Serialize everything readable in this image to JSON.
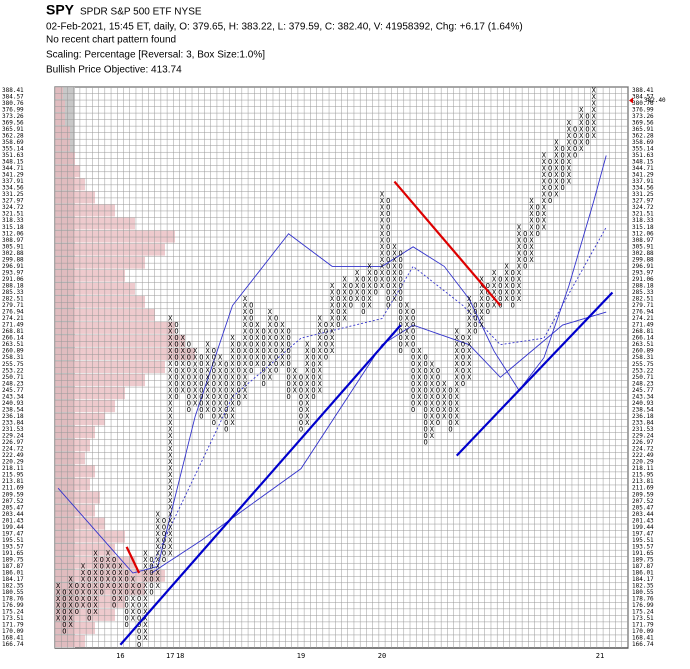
{
  "chart_data": {
    "type": "point-and-figure",
    "symbol": "SPY",
    "name": "SPDR S&P 500 ETF  NYSE",
    "quote": "02-Feb-2021, 15:45 ET, daily, O: 379.65, H: 383.22, L: 379.59, C: 382.40, V: 41958392, Chg: +6.17 (1.64%)",
    "pattern": "No recent chart pattern found",
    "scaling": "Scaling: Percentage [Reversal: 3, Box Size:1.0%]",
    "objective": "Bullish Price Objective: 413.74",
    "log": true,
    "grid": true,
    "xlim": [
      -0.5,
      91.5
    ],
    "ylim": [
      165.91,
      390.35
    ],
    "yticks": [
      388.41,
      384.57,
      380.76,
      376.99,
      373.26,
      369.56,
      365.91,
      362.28,
      358.69,
      355.14,
      351.63,
      348.15,
      344.71,
      341.29,
      337.91,
      334.56,
      331.25,
      327.97,
      324.72,
      321.51,
      318.33,
      315.18,
      312.06,
      308.97,
      305.91,
      302.88,
      299.88,
      296.91,
      293.97,
      291.06,
      288.18,
      285.33,
      282.51,
      279.71,
      276.94,
      274.21,
      271.49,
      268.81,
      266.14,
      263.51,
      260.89,
      258.31,
      255.75,
      253.22,
      250.71,
      248.23,
      245.77,
      243.34,
      240.93,
      238.54,
      236.18,
      233.84,
      231.53,
      229.24,
      226.97,
      224.72,
      222.49,
      220.29,
      218.11,
      215.95,
      213.81,
      211.69,
      209.59,
      207.52,
      205.47,
      203.44,
      201.43,
      199.44,
      197.47,
      195.51,
      193.57,
      191.65,
      189.75,
      187.87,
      186.01,
      184.17,
      182.35,
      180.55,
      178.76,
      176.99,
      175.24,
      173.51,
      171.79,
      170.09,
      168.41,
      166.74
    ],
    "xticks": [
      {
        "value": 10,
        "label": "16"
      },
      {
        "value": 18,
        "label": "17"
      },
      {
        "value": 19.6,
        "label": "18"
      },
      {
        "value": 39,
        "label": "19"
      },
      {
        "value": 52,
        "label": "20"
      },
      {
        "value": 87,
        "label": "21"
      }
    ],
    "last_price": {
      "value": 382.4,
      "label": "382.40"
    },
    "x_color": "#000000",
    "o_color": "#000000",
    "columns": [
      {
        "type": "X",
        "low": 173.51,
        "high": 182.35
      },
      {
        "type": "O",
        "low": 170.09,
        "high": 180.55
      },
      {
        "type": "X",
        "low": 171.79,
        "high": 184.17
      },
      {
        "type": "O",
        "low": 175.24,
        "high": 182.35
      },
      {
        "type": "X",
        "low": 176.99,
        "high": 187.87
      },
      {
        "type": "O",
        "low": 173.51,
        "high": 186.01
      },
      {
        "type": "X",
        "low": 175.24,
        "high": 191.65
      },
      {
        "type": "O",
        "low": 180.55,
        "high": 189.75
      },
      {
        "type": "X",
        "low": 182.35,
        "high": 191.65
      },
      {
        "type": "O",
        "low": 176.99,
        "high": 189.75
      },
      {
        "type": "X",
        "low": 178.76,
        "high": 187.87
      },
      {
        "type": "O",
        "low": 171.79,
        "high": 186.01
      },
      {
        "type": "X",
        "low": 173.51,
        "high": 184.17
      },
      {
        "type": "O",
        "low": 166.74,
        "high": 182.35
      },
      {
        "type": "X",
        "low": 168.41,
        "high": 191.65
      },
      {
        "type": "O",
        "low": 180.55,
        "high": 189.75
      },
      {
        "type": "X",
        "low": 182.35,
        "high": 203.44
      },
      {
        "type": "O",
        "low": 189.75,
        "high": 201.43
      },
      {
        "type": "X",
        "low": 191.65,
        "high": 274.21
      },
      {
        "type": "O",
        "low": 243.34,
        "high": 271.49
      },
      {
        "type": "X",
        "low": 245.77,
        "high": 266.14
      },
      {
        "type": "O",
        "low": 238.54,
        "high": 263.51
      },
      {
        "type": "X",
        "low": 240.93,
        "high": 260.89
      },
      {
        "type": "O",
        "low": 236.18,
        "high": 258.31
      },
      {
        "type": "X",
        "low": 238.54,
        "high": 263.51
      },
      {
        "type": "O",
        "low": 233.84,
        "high": 260.89
      },
      {
        "type": "X",
        "low": 236.18,
        "high": 258.31
      },
      {
        "type": "O",
        "low": 231.53,
        "high": 255.75
      },
      {
        "type": "X",
        "low": 233.84,
        "high": 266.14
      },
      {
        "type": "O",
        "low": 240.93,
        "high": 263.51
      },
      {
        "type": "X",
        "low": 243.34,
        "high": 282.51
      },
      {
        "type": "O",
        "low": 253.22,
        "high": 279.71
      },
      {
        "type": "X",
        "low": 255.75,
        "high": 271.49
      },
      {
        "type": "O",
        "low": 248.23,
        "high": 268.81
      },
      {
        "type": "X",
        "low": 250.71,
        "high": 276.94
      },
      {
        "type": "O",
        "low": 253.22,
        "high": 274.21
      },
      {
        "type": "X",
        "low": 255.75,
        "high": 271.49
      },
      {
        "type": "O",
        "low": 243.34,
        "high": 268.81
      },
      {
        "type": "X",
        "low": 245.77,
        "high": 253.22
      },
      {
        "type": "O",
        "low": 231.53,
        "high": 250.71
      },
      {
        "type": "X",
        "low": 233.84,
        "high": 263.51
      },
      {
        "type": "O",
        "low": 243.34,
        "high": 260.89
      },
      {
        "type": "X",
        "low": 245.77,
        "high": 274.21
      },
      {
        "type": "O",
        "low": 258.31,
        "high": 271.49
      },
      {
        "type": "X",
        "low": 260.89,
        "high": 288.18
      },
      {
        "type": "O",
        "low": 271.49,
        "high": 285.33
      },
      {
        "type": "X",
        "low": 274.21,
        "high": 291.06
      },
      {
        "type": "O",
        "low": 279.71,
        "high": 288.18
      },
      {
        "type": "X",
        "low": 282.51,
        "high": 293.97
      },
      {
        "type": "O",
        "low": 276.94,
        "high": 291.06
      },
      {
        "type": "X",
        "low": 279.71,
        "high": 296.91
      },
      {
        "type": "O",
        "low": 285.33,
        "high": 293.97
      },
      {
        "type": "X",
        "low": 288.18,
        "high": 331.25
      },
      {
        "type": "O",
        "low": 279.71,
        "high": 327.97
      },
      {
        "type": "X",
        "low": 282.51,
        "high": 305.91
      },
      {
        "type": "O",
        "low": 260.89,
        "high": 302.88
      },
      {
        "type": "X",
        "low": 263.51,
        "high": 279.71
      },
      {
        "type": "O",
        "low": 238.54,
        "high": 276.94
      },
      {
        "type": "X",
        "low": 240.93,
        "high": 260.89
      },
      {
        "type": "O",
        "low": 226.97,
        "high": 258.31
      },
      {
        "type": "X",
        "low": 229.24,
        "high": 255.75
      },
      {
        "type": "O",
        "low": 233.84,
        "high": 253.22
      },
      {
        "type": "X",
        "low": 236.18,
        "high": 248.23
      },
      {
        "type": "O",
        "low": 231.53,
        "high": 245.77
      },
      {
        "type": "X",
        "low": 233.84,
        "high": 268.81
      },
      {
        "type": "O",
        "low": 248.23,
        "high": 266.14
      },
      {
        "type": "X",
        "low": 250.71,
        "high": 282.51
      },
      {
        "type": "O",
        "low": 268.81,
        "high": 279.71
      },
      {
        "type": "X",
        "low": 271.49,
        "high": 291.06
      },
      {
        "type": "O",
        "low": 276.94,
        "high": 288.18
      },
      {
        "type": "X",
        "low": 279.71,
        "high": 293.97
      },
      {
        "type": "O",
        "low": 279.71,
        "high": 291.06
      },
      {
        "type": "X",
        "low": 282.51,
        "high": 296.91
      },
      {
        "type": "O",
        "low": 279.71,
        "high": 293.97
      },
      {
        "type": "X",
        "low": 282.51,
        "high": 315.18
      },
      {
        "type": "O",
        "low": 296.91,
        "high": 312.06
      },
      {
        "type": "X",
        "low": 299.88,
        "high": 327.97
      },
      {
        "type": "O",
        "low": 312.06,
        "high": 324.72
      },
      {
        "type": "X",
        "low": 315.18,
        "high": 351.63
      },
      {
        "type": "O",
        "low": 327.97,
        "high": 348.15
      },
      {
        "type": "X",
        "low": 331.25,
        "high": 358.69
      },
      {
        "type": "O",
        "low": 334.56,
        "high": 355.14
      },
      {
        "type": "X",
        "low": 337.91,
        "high": 369.56
      },
      {
        "type": "O",
        "low": 351.63,
        "high": 365.91
      },
      {
        "type": "X",
        "low": 355.14,
        "high": 376.99
      },
      {
        "type": "O",
        "low": 358.69,
        "high": 373.26
      },
      {
        "type": "X",
        "low": 362.28,
        "high": 388.41
      }
    ],
    "trendlines": [
      {
        "color": "#0000cc",
        "x": [
          10,
          55
        ],
        "values": [
          166.74,
          271.49
        ]
      },
      {
        "color": "#0000cc",
        "x": [
          64,
          89
        ],
        "values": [
          222.49,
          285.33
        ]
      },
      {
        "color": "#dd0000",
        "x": [
          11,
          13
        ],
        "values": [
          193.57,
          186.01
        ]
      },
      {
        "color": "#dd0000",
        "x": [
          54,
          71
        ],
        "values": [
          337.91,
          279.71
        ]
      }
    ],
    "averages": [
      {
        "color": "#3333cc",
        "dashed": false,
        "x": [
          0,
          12,
          16,
          22,
          28,
          37,
          44,
          52,
          57,
          62,
          66,
          70,
          74,
          78,
          82,
          86,
          88
        ],
        "values": [
          211.69,
          186.01,
          187.87,
          236.18,
          279.71,
          312.06,
          296.91,
          296.91,
          305.91,
          296.91,
          282.51,
          260.89,
          245.77,
          258.31,
          288.18,
          327.97,
          351.63
        ]
      },
      {
        "color": "#3333cc",
        "dashed": true,
        "x": [
          15,
          28,
          39,
          52,
          57,
          65,
          71,
          78,
          88
        ],
        "values": [
          187.87,
          243.34,
          266.14,
          274.21,
          296.91,
          279.71,
          263.51,
          266.14,
          315.18
        ]
      },
      {
        "color": "#3333cc",
        "dashed": false,
        "x": [
          15,
          23,
          39,
          52,
          57,
          66,
          71,
          81,
          88
        ],
        "values": [
          186.01,
          195.51,
          218.11,
          263.51,
          271.49,
          263.51,
          250.71,
          271.49,
          276.94
        ]
      }
    ],
    "volume_profile": {
      "color": "#e8b8bc",
      "base_color": "#c8c8c8",
      "values": [
        30,
        40,
        60,
        70,
        90,
        110,
        80,
        60,
        70,
        50,
        40,
        45,
        35,
        40,
        30,
        35,
        40,
        50,
        60,
        70,
        90,
        110,
        140,
        130,
        120,
        100,
        90,
        80,
        70,
        90,
        110,
        120,
        80,
        60,
        40,
        30,
        25,
        20,
        15,
        15,
        10,
        10,
        8
      ]
    }
  }
}
